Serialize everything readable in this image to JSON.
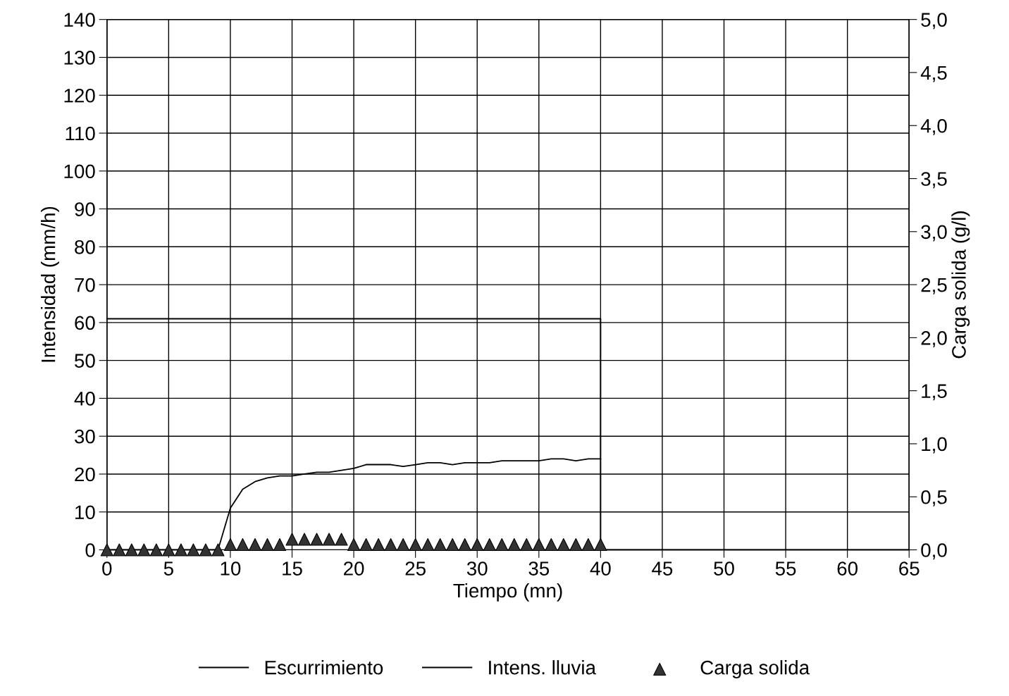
{
  "chart_data": {
    "type": "line",
    "xlabel": "Tiempo (mn)",
    "ylabel": "Intensidad (mm/h)",
    "y2label": "Carga solida (g/l)",
    "xlim": [
      0,
      65
    ],
    "xticks": [
      0,
      5,
      10,
      15,
      20,
      25,
      30,
      35,
      40,
      45,
      50,
      55,
      60,
      65
    ],
    "ylim": [
      0,
      140
    ],
    "yticks": [
      0,
      10,
      20,
      30,
      40,
      50,
      60,
      70,
      80,
      90,
      100,
      110,
      120,
      130,
      140
    ],
    "y2lim": [
      0,
      5
    ],
    "y2ticks": [
      {
        "value": 0,
        "label": "0,0"
      },
      {
        "value": 0.5,
        "label": "0,5"
      },
      {
        "value": 1,
        "label": "1,0"
      },
      {
        "value": 1.5,
        "label": "1,5"
      },
      {
        "value": 2,
        "label": "2,0"
      },
      {
        "value": 2.5,
        "label": "2,5"
      },
      {
        "value": 3,
        "label": "3,0"
      },
      {
        "value": 3.5,
        "label": "3,5"
      },
      {
        "value": 4,
        "label": "4,0"
      },
      {
        "value": 4.5,
        "label": "4,5"
      },
      {
        "value": 5,
        "label": "5,0"
      }
    ],
    "grid": true,
    "legend": "bottom",
    "series": [
      {
        "name": "Escurrimiento",
        "color": "#000000",
        "marker": "none",
        "x": [
          0,
          5,
          9,
          10,
          11,
          12,
          13,
          14,
          15,
          16,
          17,
          18,
          19,
          20,
          21,
          22,
          23,
          24,
          25,
          26,
          27,
          28,
          29,
          30,
          31,
          32,
          33,
          34,
          35,
          36,
          37,
          38,
          39,
          40
        ],
        "values": [
          0,
          0,
          0,
          11,
          16,
          18,
          19,
          19.5,
          19.5,
          20,
          20.5,
          20.5,
          21,
          21.5,
          22.5,
          22.5,
          22.5,
          22,
          22.5,
          23,
          23,
          22.5,
          23,
          23,
          23,
          23.5,
          23.5,
          23.5,
          23.5,
          24,
          24,
          23.5,
          24,
          24
        ]
      },
      {
        "name": "Intens. lluvia",
        "color": "#000000",
        "marker": "none",
        "x": [
          0,
          40,
          40,
          65
        ],
        "values": [
          61,
          61,
          0,
          0
        ]
      },
      {
        "name": "Carga solida",
        "type": "scatter",
        "axis": "y2",
        "color": "#333333",
        "marker": "triangle",
        "x": [
          0,
          1,
          2,
          3,
          4,
          5,
          6,
          7,
          8,
          9,
          10,
          11,
          12,
          13,
          14,
          15,
          16,
          17,
          18,
          19,
          20,
          21,
          22,
          23,
          24,
          25,
          26,
          27,
          28,
          29,
          30,
          31,
          32,
          33,
          34,
          35,
          36,
          37,
          38,
          39,
          40
        ],
        "values": [
          0,
          0,
          0,
          0,
          0,
          0,
          0,
          0,
          0,
          0,
          0.05,
          0.05,
          0.05,
          0.05,
          0.05,
          0.1,
          0.1,
          0.1,
          0.1,
          0.1,
          0.05,
          0.05,
          0.05,
          0.05,
          0.05,
          0.05,
          0.05,
          0.05,
          0.05,
          0.05,
          0.05,
          0.05,
          0.05,
          0.05,
          0.05,
          0.05,
          0.05,
          0.05,
          0.05,
          0.05,
          0.05
        ]
      }
    ]
  }
}
